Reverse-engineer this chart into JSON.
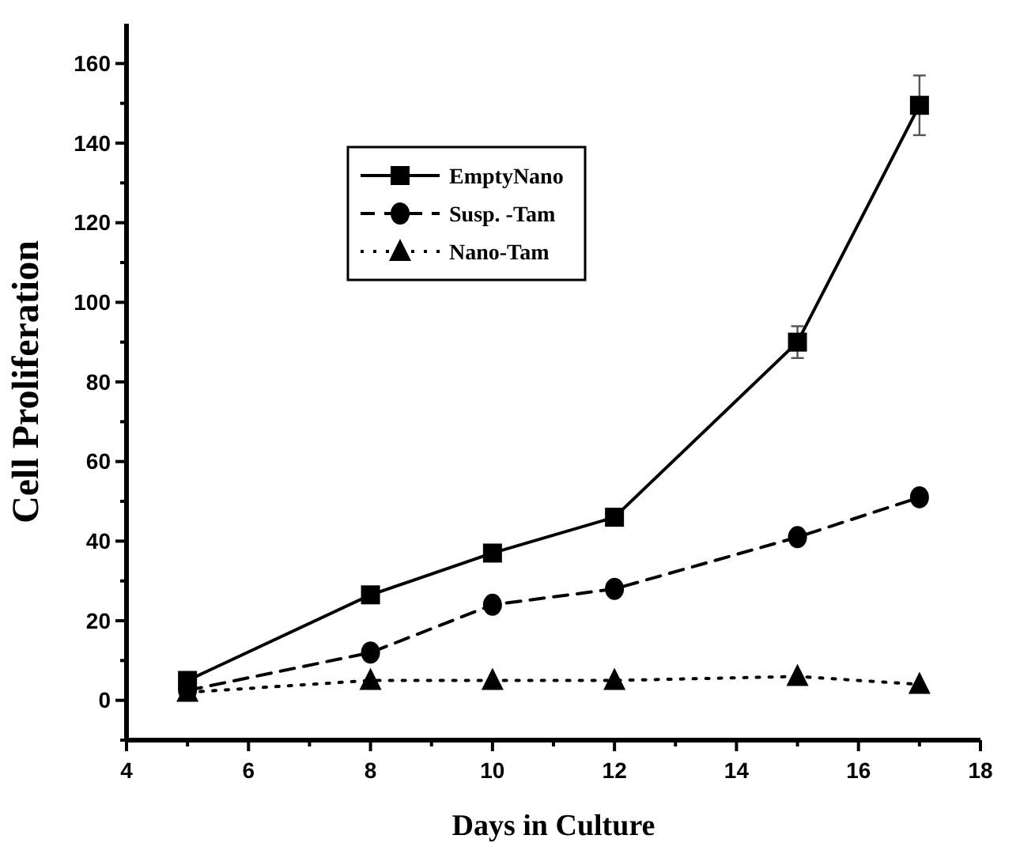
{
  "chart_data": {
    "type": "line",
    "xlabel": "Days in Culture",
    "ylabel": "Cell Proliferation",
    "x": [
      5,
      8,
      10,
      12,
      15,
      17
    ],
    "series": [
      {
        "name": "EmptyNano",
        "color": "#000000",
        "marker": "square",
        "line_style": "solid",
        "values": [
          5,
          26.5,
          37,
          46,
          90,
          149.5
        ],
        "errors": [
          null,
          null,
          null,
          null,
          4,
          7.5
        ]
      },
      {
        "name": "Susp. -Tam",
        "color": "#000000",
        "marker": "circle",
        "line_style": "dashed",
        "values": [
          2.5,
          12,
          24,
          28,
          41,
          51
        ]
      },
      {
        "name": "Nano-Tam",
        "color": "#000000",
        "marker": "triangle",
        "line_style": "dotted",
        "values": [
          2,
          5,
          5,
          5,
          6,
          4
        ]
      }
    ],
    "xlim": [
      4,
      18
    ],
    "xticks": [
      4,
      {
        "value": 5,
        "label": null
      },
      6,
      {
        "value": 7,
        "label": null
      },
      8,
      {
        "value": 9,
        "label": null
      },
      10,
      {
        "value": 11,
        "label": null
      },
      12,
      {
        "value": 13,
        "label": null
      },
      14,
      {
        "value": 15,
        "label": null
      },
      16,
      {
        "value": 17,
        "label": null
      },
      18
    ],
    "ylim": [
      -10,
      170
    ],
    "yticks": [
      {
        "value": -10,
        "label": null
      },
      0,
      {
        "value": 10,
        "label": null
      },
      20,
      {
        "value": 30,
        "label": null
      },
      40,
      {
        "value": 50,
        "label": null
      },
      60,
      {
        "value": 70,
        "label": null
      },
      80,
      {
        "value": 90,
        "label": null
      },
      100,
      {
        "value": 110,
        "label": null
      },
      120,
      {
        "value": 130,
        "label": null
      },
      140,
      {
        "value": 150,
        "label": null
      },
      160
    ],
    "legend": "top left",
    "grid": false
  }
}
